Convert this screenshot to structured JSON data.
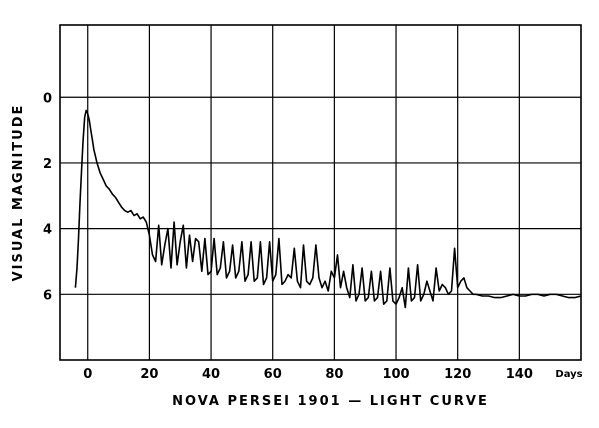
{
  "chart_data": {
    "type": "line",
    "title": "NOVA PERSEI 1901 — LIGHT CURVE",
    "ylabel": "VISUAL MAGNITUDE",
    "xlabel": "",
    "x_unit_label": "Days",
    "x_ticks": [
      0,
      20,
      40,
      60,
      80,
      100,
      120,
      140
    ],
    "y_ticks": [
      0,
      2,
      4,
      6
    ],
    "xlim": [
      -9,
      160
    ],
    "ylim": [
      8,
      -2.2
    ],
    "y_inverted": true,
    "grid": true,
    "series": [
      {
        "x": [
          -4,
          -3.5,
          -3,
          -2.5,
          -2,
          -1.5,
          -1,
          -0.5,
          0,
          0.5,
          1,
          1.5,
          2,
          2.5,
          3,
          4,
          5,
          6,
          7,
          8,
          9,
          10,
          11,
          12,
          13,
          14,
          15,
          16,
          17,
          18,
          19,
          20,
          21,
          22,
          23,
          24,
          25,
          26,
          27,
          28,
          29,
          30,
          31,
          32,
          33,
          34,
          35,
          36,
          37,
          38,
          39,
          40,
          41,
          42,
          43,
          44,
          45,
          46,
          47,
          48,
          49,
          50,
          51,
          52,
          53,
          54,
          55,
          56,
          57,
          58,
          59,
          60,
          61,
          62,
          63,
          64,
          65,
          66,
          67,
          68,
          69,
          70,
          71,
          72,
          73,
          74,
          75,
          76,
          77,
          78,
          79,
          80,
          81,
          82,
          83,
          84,
          85,
          86,
          87,
          88,
          89,
          90,
          91,
          92,
          93,
          94,
          95,
          96,
          97,
          98,
          99,
          100,
          101,
          102,
          103,
          104,
          105,
          106,
          107,
          108,
          109,
          110,
          111,
          112,
          113,
          114,
          115,
          116,
          117,
          118,
          119,
          120,
          121,
          122,
          123,
          124,
          125,
          126,
          128,
          130,
          132,
          134,
          136,
          138,
          140,
          142,
          144,
          146,
          148,
          150,
          152,
          154,
          156,
          158,
          160
        ],
        "y": [
          5.8,
          5.2,
          4.3,
          3.2,
          2.2,
          1.3,
          0.6,
          0.4,
          0.5,
          0.7,
          1.0,
          1.3,
          1.6,
          1.8,
          2.0,
          2.3,
          2.5,
          2.7,
          2.8,
          2.95,
          3.05,
          3.2,
          3.35,
          3.45,
          3.5,
          3.45,
          3.6,
          3.55,
          3.7,
          3.65,
          3.8,
          4.2,
          4.8,
          5.0,
          3.9,
          5.1,
          4.5,
          4.0,
          5.2,
          3.8,
          5.1,
          4.4,
          3.9,
          5.2,
          4.2,
          5.0,
          4.3,
          4.4,
          5.3,
          4.3,
          5.4,
          5.3,
          4.3,
          5.4,
          5.2,
          4.4,
          5.5,
          5.3,
          4.5,
          5.5,
          5.3,
          4.4,
          5.6,
          5.4,
          4.4,
          5.6,
          5.5,
          4.4,
          5.7,
          5.5,
          4.4,
          5.6,
          5.4,
          4.3,
          5.7,
          5.6,
          5.4,
          5.5,
          4.6,
          5.6,
          5.8,
          4.5,
          5.6,
          5.7,
          5.5,
          4.5,
          5.5,
          5.8,
          5.6,
          5.9,
          5.3,
          5.5,
          4.8,
          5.8,
          5.3,
          5.8,
          6.1,
          5.1,
          6.2,
          6.0,
          5.2,
          6.2,
          6.1,
          5.3,
          6.2,
          6.1,
          5.3,
          6.3,
          6.2,
          5.2,
          6.2,
          6.3,
          6.1,
          5.8,
          6.4,
          5.2,
          6.2,
          6.1,
          5.1,
          6.2,
          6.0,
          5.6,
          5.9,
          6.2,
          5.2,
          5.9,
          5.7,
          5.8,
          6.0,
          5.9,
          4.6,
          5.8,
          5.6,
          5.5,
          5.8,
          5.9,
          6.0,
          6.0,
          6.05,
          6.05,
          6.1,
          6.1,
          6.05,
          6.0,
          6.05,
          6.05,
          6.0,
          6.0,
          6.05,
          6.0,
          6.0,
          6.05,
          6.1,
          6.1,
          6.05
        ]
      }
    ]
  }
}
